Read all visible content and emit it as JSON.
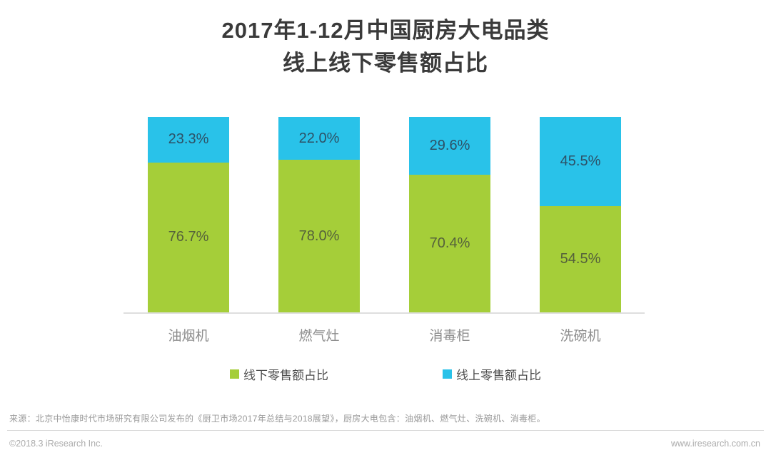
{
  "title": {
    "line1": "2017年1-12月中国厨房大电品类",
    "line2": "线上线下零售额占比"
  },
  "chart_data": {
    "type": "bar",
    "stacked": true,
    "title": "2017年1-12月中国厨房大电品类线上线下零售额占比",
    "categories": [
      "油烟机",
      "燃气灶",
      "消毒柜",
      "洗碗机"
    ],
    "series": [
      {
        "name": "线下零售额占比",
        "color": "#a5ce39",
        "values": [
          76.7,
          78.0,
          70.4,
          54.5
        ],
        "labels": [
          "76.7%",
          "78.0%",
          "70.4%",
          "54.5%"
        ]
      },
      {
        "name": "线上零售额占比",
        "color": "#29c2e9",
        "values": [
          23.3,
          22.0,
          29.6,
          45.5
        ],
        "labels": [
          "23.3%",
          "22.0%",
          "29.6%",
          "45.5%"
        ]
      }
    ],
    "ylim": [
      0,
      100
    ],
    "grid": false,
    "legend_position": "bottom"
  },
  "legend": {
    "offline_label": "线下零售额占比",
    "online_label": "线上零售额占比"
  },
  "footer": {
    "source": "来源：北京中怡康时代市场研究有限公司发布的《厨卫市场2017年总结与2018展望》，厨房大电包含：油烟机、燃气灶、洗碗机、消毒柜。",
    "copyright": "©2018.3 iResearch Inc.",
    "website": "www.iresearch.com.cn"
  },
  "colors": {
    "offline": "#a5ce39",
    "online": "#29c2e9",
    "title_text": "#3a3a3a",
    "axis_line": "#dedede"
  }
}
